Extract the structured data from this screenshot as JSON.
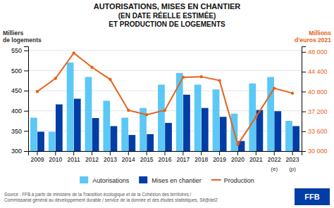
{
  "chart_data": {
    "type": "bar",
    "title": [
      "AUTORISATIONS, MISES EN CHANTIER",
      "(EN DATE RÉELLE ESTIMÉE)",
      "ET PRODUCTION DE LOGEMENTS"
    ],
    "y_label": [
      "Milliers",
      "de logements"
    ],
    "y2_label": [
      "Millions",
      "d’euros 2021"
    ],
    "categories": [
      "2009",
      "2010",
      "2011",
      "2012",
      "2013",
      "2014",
      "2015",
      "2016",
      "2017",
      "2018",
      "2019",
      "2020",
      "2021",
      "2022",
      "2023"
    ],
    "series": [
      {
        "name": "Autorisations",
        "color": "#5BC8F5",
        "values": [
          383,
          348,
          520,
          484,
          425,
          383,
          407,
          465,
          494,
          465,
          453,
          393,
          468,
          484,
          375
        ]
      },
      {
        "name": "Mises en chantier",
        "color": "#003DA5",
        "values": [
          348,
          416,
          430,
          382,
          362,
          340,
          342,
          370,
          440,
          407,
          385,
          325,
          402,
          399,
          362
        ]
      },
      {
        "name": "Production",
        "type": "line",
        "axis": "y2",
        "marker": "circle",
        "color": "#E8621A",
        "values": [
          40800,
          43200,
          47800,
          45200,
          43000,
          37400,
          36600,
          37400,
          43400,
          43500,
          42800,
          31200,
          36200,
          41400,
          40500
        ]
      }
    ],
    "ylim": [
      300,
      560
    ],
    "yticks": [
      300,
      350,
      400,
      450,
      500,
      550
    ],
    "y2lim": [
      30000,
      49000
    ],
    "y2ticks": [
      {
        "value": 30000,
        "label": "30 000"
      },
      {
        "value": 33600,
        "label": "33 600"
      },
      {
        "value": 37200,
        "label": "37 200"
      },
      {
        "value": 40800,
        "label": "40 800"
      },
      {
        "value": 44400,
        "label": "44 400"
      },
      {
        "value": 48000,
        "label": "48 000"
      }
    ],
    "grid": true,
    "legend": "bottom",
    "annotations": [
      {
        "text": "(e)",
        "x": "2022"
      },
      {
        "text": "(p)",
        "x": "2023"
      },
      {
        "text": "FFB"
      }
    ],
    "source": "Source : FFB à partir de ministère de la Transition écologique et de la Cohésion des territoires /\nCommissariat général au développement durable / service de la donnée et des études statistiques, Sit@del2"
  }
}
